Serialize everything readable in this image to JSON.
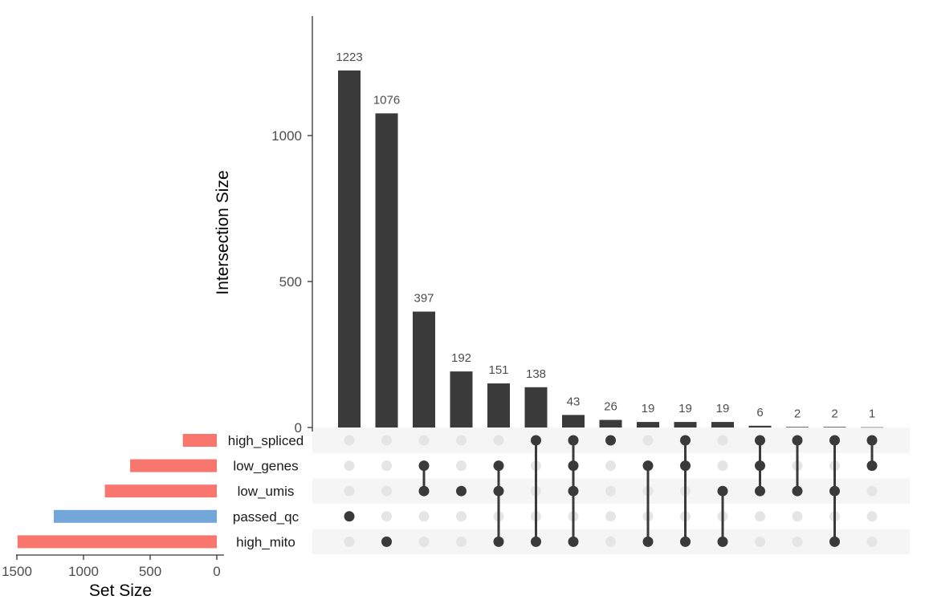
{
  "chart_data": {
    "type": "upset",
    "y_axis": {
      "title": "Intersection Size",
      "range": [
        0,
        1400
      ],
      "ticks": [
        0,
        500,
        1000
      ]
    },
    "set_axis": {
      "title": "Set Size",
      "range": [
        0,
        1500
      ],
      "ticks": [
        1500,
        1000,
        500,
        0
      ],
      "tick_labels": [
        "1500",
        "1000",
        "500",
        "0"
      ]
    },
    "sets": [
      {
        "name": "high_spliced",
        "size": 255,
        "color": "#f8766d"
      },
      {
        "name": "low_genes",
        "size": 650,
        "color": "#f8766d"
      },
      {
        "name": "low_umis",
        "size": 840,
        "color": "#f8766d"
      },
      {
        "name": "passed_qc",
        "size": 1223,
        "color": "#74a7d9"
      },
      {
        "name": "high_mito",
        "size": 1495,
        "color": "#f8766d"
      }
    ],
    "intersections": [
      {
        "value": 1223,
        "label": "1223",
        "members": [
          "passed_qc"
        ]
      },
      {
        "value": 1076,
        "label": "1076",
        "members": [
          "high_mito"
        ]
      },
      {
        "value": 397,
        "label": "397",
        "members": [
          "low_genes",
          "low_umis"
        ]
      },
      {
        "value": 192,
        "label": "192",
        "members": [
          "low_umis"
        ]
      },
      {
        "value": 151,
        "label": "151",
        "members": [
          "low_genes",
          "low_umis",
          "high_mito"
        ]
      },
      {
        "value": 138,
        "label": "138",
        "members": [
          "high_spliced",
          "high_mito"
        ]
      },
      {
        "value": 43,
        "label": "43",
        "members": [
          "high_spliced",
          "low_genes",
          "low_umis",
          "high_mito"
        ]
      },
      {
        "value": 26,
        "label": "26",
        "members": [
          "high_spliced"
        ]
      },
      {
        "value": 19,
        "label": "19",
        "members": [
          "low_genes",
          "high_mito"
        ]
      },
      {
        "value": 19,
        "label": "19",
        "members": [
          "high_spliced",
          "low_genes",
          "high_mito"
        ]
      },
      {
        "value": 19,
        "label": "19",
        "members": [
          "low_umis",
          "high_mito"
        ]
      },
      {
        "value": 6,
        "label": "6",
        "members": [
          "high_spliced",
          "low_genes",
          "low_umis"
        ]
      },
      {
        "value": 2,
        "label": "2",
        "members": [
          "high_spliced",
          "low_umis"
        ]
      },
      {
        "value": 2,
        "label": "2",
        "members": [
          "high_spliced",
          "low_umis",
          "high_mito"
        ]
      },
      {
        "value": 1,
        "label": "1",
        "members": [
          "high_spliced",
          "low_genes"
        ]
      }
    ],
    "colors": {
      "bar": "#3a3a3a",
      "dot_active": "#3a3a3a",
      "dot_inactive": "#e5e5e5",
      "stripe": "#f5f5f5"
    }
  }
}
